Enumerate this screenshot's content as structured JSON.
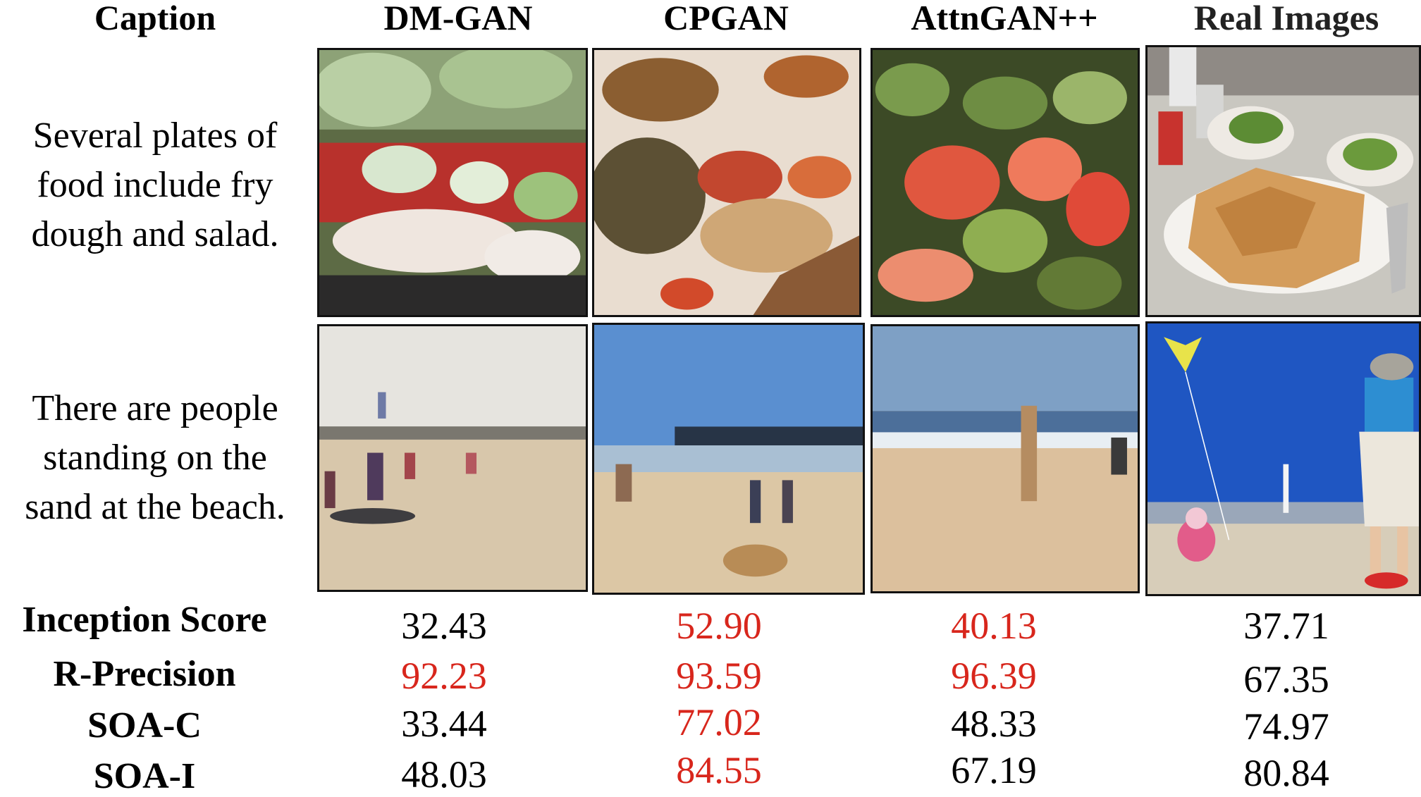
{
  "headers": [
    "Caption",
    "DM-GAN",
    "CPGAN",
    "AttnGAN++",
    "Real Images"
  ],
  "captions": [
    [
      "Several plates of",
      "food include fry",
      "dough and salad."
    ],
    [
      "There are people",
      "standing on the",
      "sand at the beach."
    ]
  ],
  "images": [
    [
      "food-dmgan-image",
      "food-cpgan-image",
      "food-attngan-image",
      "food-real-image"
    ],
    [
      "beach-dmgan-image",
      "beach-cpgan-image",
      "beach-attngan-image",
      "beach-real-image"
    ]
  ],
  "highlight_color": "#d8261c",
  "metrics": [
    {
      "label": "Inception Score",
      "values": [
        "32.43",
        "52.90",
        "40.13",
        "37.71"
      ],
      "highlight": [
        false,
        true,
        true,
        false
      ]
    },
    {
      "label": "R-Precision",
      "values": [
        "92.23",
        "93.59",
        "96.39",
        "67.35"
      ],
      "highlight": [
        true,
        true,
        true,
        false
      ]
    },
    {
      "label": "SOA-C",
      "values": [
        "33.44",
        "77.02",
        "48.33",
        "74.97"
      ],
      "highlight": [
        false,
        true,
        false,
        false
      ]
    },
    {
      "label": "SOA-I",
      "values": [
        "48.03",
        "84.55",
        "67.19",
        "80.84"
      ],
      "highlight": [
        false,
        true,
        false,
        false
      ]
    }
  ]
}
